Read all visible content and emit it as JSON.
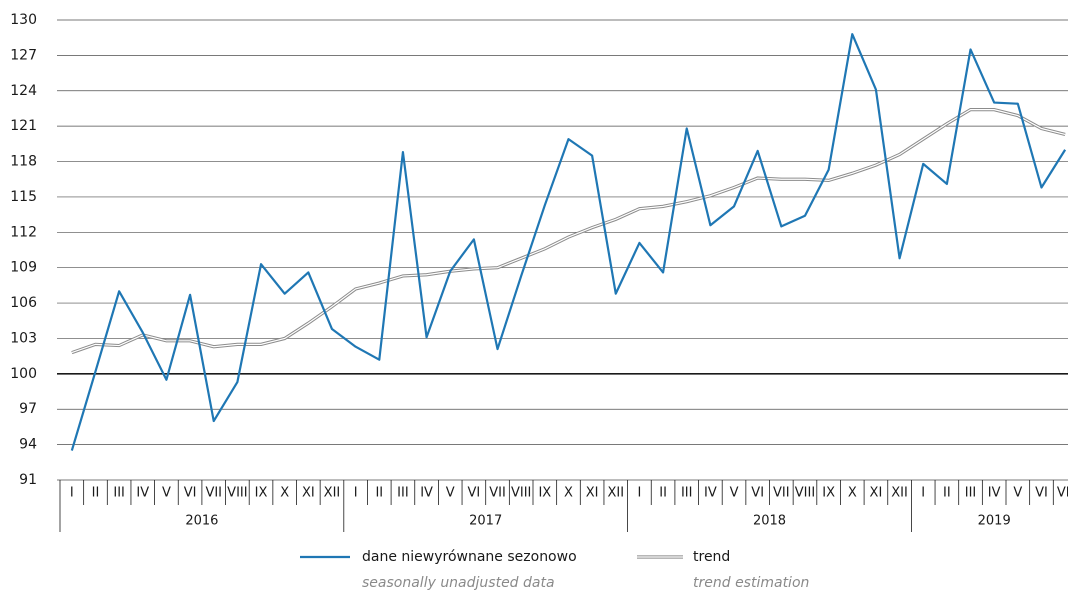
{
  "chart_data": {
    "type": "line",
    "categories": [
      "I",
      "II",
      "III",
      "IV",
      "V",
      "VI",
      "VII",
      "VIII",
      "IX",
      "X",
      "XI",
      "XII",
      "I",
      "II",
      "III",
      "IV",
      "V",
      "VI",
      "VII",
      "VIII",
      "IX",
      "X",
      "XI",
      "XII",
      "I",
      "II",
      "III",
      "IV",
      "V",
      "VI",
      "VII",
      "VIII",
      "IX",
      "X",
      "XI",
      "XII",
      "I",
      "II",
      "III",
      "IV",
      "V",
      "VI",
      "VII"
    ],
    "years": [
      "2016",
      "2017",
      "2018",
      "2019"
    ],
    "series": [
      {
        "name": "dane niewyrównane sezonowo",
        "name_en": "seasonally unadjusted data",
        "color": "#1f77b4",
        "values": [
          93.5,
          100.2,
          107,
          103.5,
          99.5,
          106.7,
          96,
          99.3,
          109.3,
          106.8,
          108.6,
          103.8,
          102.3,
          101.2,
          118.8,
          103.1,
          108.7,
          111.4,
          102.1,
          108.3,
          114.3,
          119.9,
          118.5,
          106.8,
          111.1,
          108.6,
          120.8,
          112.6,
          114.2,
          118.9,
          112.5,
          113.4,
          117.3,
          128.8,
          124.1,
          109.8,
          117.8,
          116.1,
          127.5,
          123,
          122.9,
          115.8,
          119
        ]
      },
      {
        "name": "trend",
        "name_en": "trend estimation",
        "color": "#8c8c8c",
        "values": [
          101.8,
          102.5,
          102.4,
          103.3,
          102.8,
          102.8,
          102.3,
          102.5,
          102.5,
          103,
          104.3,
          105.7,
          107.2,
          107.7,
          108.3,
          108.4,
          108.7,
          108.9,
          109,
          109.8,
          110.6,
          111.6,
          112.4,
          113.1,
          114,
          114.2,
          114.6,
          115.1,
          115.8,
          116.6,
          116.5,
          116.5,
          116.4,
          117,
          117.7,
          118.6,
          119.9,
          121.2,
          122.4,
          122.4,
          121.9,
          120.8,
          120.3
        ]
      }
    ],
    "ylim": [
      91,
      130
    ],
    "yticks": [
      91,
      94,
      97,
      100,
      103,
      106,
      109,
      112,
      115,
      118,
      121,
      124,
      127,
      130
    ],
    "grid": true,
    "baseline": 100
  }
}
